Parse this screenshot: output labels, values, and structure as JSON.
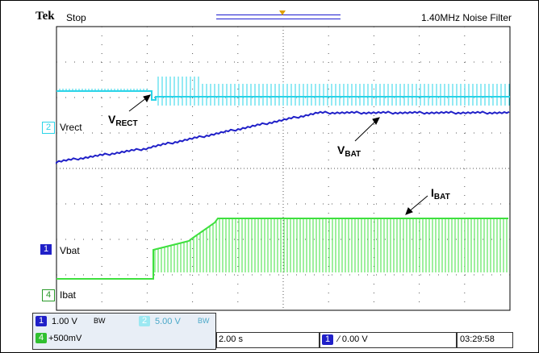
{
  "header": {
    "brand": "Tek",
    "run_state": "Stop",
    "filter": "1.40MHz  Noise Filter"
  },
  "channels": [
    {
      "badge": "2",
      "label": "Vrect",
      "color": "#2ad4e8"
    },
    {
      "badge": "1",
      "label": "Vbat",
      "color": "#2020c8"
    },
    {
      "badge": "4",
      "label": "Ibat",
      "color": "#3ee03e"
    }
  ],
  "annotations": {
    "vrect": {
      "main": "V",
      "sub": "RECT"
    },
    "vbat": {
      "main": "V",
      "sub": "BAT"
    },
    "ibat": {
      "main": "I",
      "sub": "BAT"
    }
  },
  "status": {
    "ch1_badge": "1",
    "ch1_scale": "1.00 V",
    "ch1_bw": "BW",
    "ch2_badge": "2",
    "ch2_scale": "5.00 V",
    "ch2_bw": "BW",
    "ch4_badge": "4",
    "ch4_scale": "+500mV",
    "timebase": "2.00 s",
    "trig_badge": "1",
    "trig_level": "∕ 0.00 V",
    "clock": "03:29:58"
  }
}
